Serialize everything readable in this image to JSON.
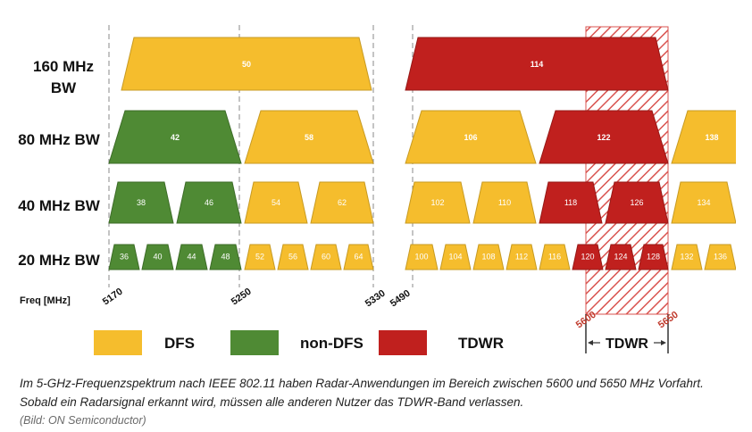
{
  "colors": {
    "dfs": "#f5bd2d",
    "dfs_stroke": "#c79a22",
    "nondfs": "#4f8a34",
    "nondfs_stroke": "#3d6c28",
    "tdwr": "#c0201e",
    "tdwr_stroke": "#961816",
    "hatch": "#d9534f"
  },
  "rows": [
    {
      "label": "160 MHz",
      "label2": "BW"
    },
    {
      "label": "80 MHz BW"
    },
    {
      "label": "40 MHz BW"
    },
    {
      "label": "20 MHz BW"
    }
  ],
  "freq_axis": {
    "label": "Freq [MHz]",
    "ticks": [
      "5170",
      "5250",
      "5330",
      "5490"
    ]
  },
  "channels": {
    "row160": [
      {
        "n": "50",
        "type": "dfs"
      },
      {
        "n": "114",
        "type": "tdwr"
      }
    ],
    "row80": [
      {
        "n": "42",
        "type": "nondfs"
      },
      {
        "n": "58",
        "type": "dfs"
      },
      {
        "n": "106",
        "type": "dfs"
      },
      {
        "n": "122",
        "type": "tdwr"
      },
      {
        "n": "138",
        "type": "dfs"
      }
    ],
    "row40": [
      {
        "n": "38",
        "type": "nondfs"
      },
      {
        "n": "46",
        "type": "nondfs"
      },
      {
        "n": "54",
        "type": "dfs"
      },
      {
        "n": "62",
        "type": "dfs"
      },
      {
        "n": "102",
        "type": "dfs"
      },
      {
        "n": "110",
        "type": "dfs"
      },
      {
        "n": "118",
        "type": "tdwr"
      },
      {
        "n": "126",
        "type": "tdwr"
      },
      {
        "n": "134",
        "type": "dfs"
      }
    ],
    "row20": [
      {
        "n": "36",
        "type": "nondfs"
      },
      {
        "n": "40",
        "type": "nondfs"
      },
      {
        "n": "44",
        "type": "nondfs"
      },
      {
        "n": "48",
        "type": "nondfs"
      },
      {
        "n": "52",
        "type": "dfs"
      },
      {
        "n": "56",
        "type": "dfs"
      },
      {
        "n": "60",
        "type": "dfs"
      },
      {
        "n": "64",
        "type": "dfs"
      },
      {
        "n": "100",
        "type": "dfs"
      },
      {
        "n": "104",
        "type": "dfs"
      },
      {
        "n": "108",
        "type": "dfs"
      },
      {
        "n": "112",
        "type": "dfs"
      },
      {
        "n": "116",
        "type": "dfs"
      },
      {
        "n": "120",
        "type": "tdwr"
      },
      {
        "n": "124",
        "type": "tdwr"
      },
      {
        "n": "128",
        "type": "tdwr"
      },
      {
        "n": "132",
        "type": "dfs"
      },
      {
        "n": "136",
        "type": "dfs"
      }
    ]
  },
  "tdwr_band": {
    "start": "5600",
    "end": "5650",
    "label": "TDWR"
  },
  "legend": [
    {
      "type": "dfs",
      "label": "DFS"
    },
    {
      "type": "nondfs",
      "label": "non-DFS"
    },
    {
      "type": "tdwr",
      "label": "TDWR"
    }
  ],
  "caption": "Im 5-GHz-Frequenzspektrum nach IEEE 802.11 haben Radar-Anwendungen im Bereich zwischen 5600 und 5650 MHz Vorfahrt. Sobald ein Radarsignal erkannt wird, müssen alle anderen Nutzer das TDWR-Band verlassen.",
  "credit": "(Bild: ON Semiconductor)"
}
